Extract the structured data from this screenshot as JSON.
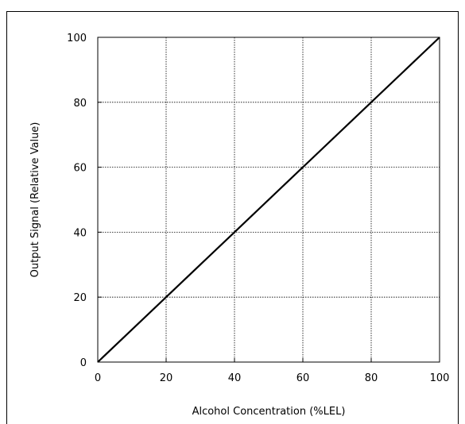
{
  "chart_data": {
    "type": "line",
    "title": "",
    "xlabel": "Alcohol Concentration (%LEL)",
    "ylabel": "Output Signal (Relative Value)",
    "xlim": [
      0,
      100
    ],
    "ylim": [
      0,
      100
    ],
    "x_ticks": [
      0,
      20,
      40,
      60,
      80,
      100
    ],
    "y_ticks": [
      0,
      20,
      40,
      60,
      80,
      100
    ],
    "grid": true,
    "legend": "none",
    "series": [
      {
        "x": [
          0,
          20,
          40,
          60,
          80,
          100
        ],
        "y": [
          0,
          20,
          40,
          60,
          80,
          100
        ],
        "color": "#000000"
      }
    ]
  }
}
